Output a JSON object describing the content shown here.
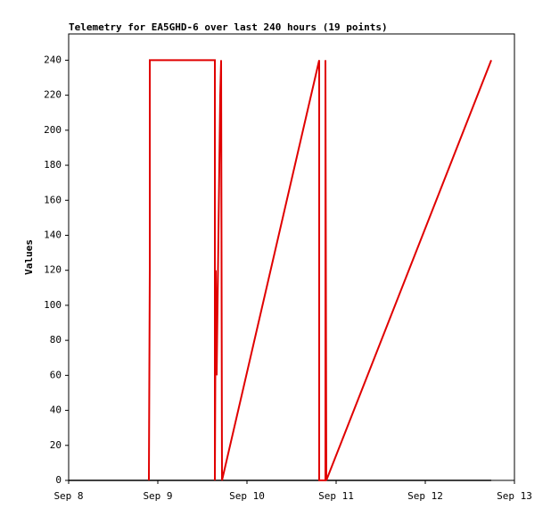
{
  "chart_data": {
    "type": "line",
    "title": "Telemetry for EA5GHD-6 over last 240 hours (19 points)",
    "y_label": "Values",
    "series": [
      {
        "color": "#000000",
        "x": [
          8.0,
          12.74
        ],
        "values": [
          0,
          0
        ]
      },
      {
        "color": "#e00000",
        "x": [
          8.9,
          8.91,
          8.91,
          9.64,
          9.64,
          9.65,
          9.66,
          9.67,
          9.68,
          9.69,
          9.7,
          9.71,
          9.72,
          10.81,
          10.81,
          10.88,
          10.88,
          10.89,
          12.74
        ],
        "values": [
          0,
          120,
          240,
          240,
          0,
          120,
          60,
          100,
          140,
          180,
          220,
          240,
          0,
          240,
          0,
          0,
          240,
          0,
          240
        ]
      }
    ],
    "xlim": [
      8,
      13
    ],
    "xticks": [
      {
        "value": 8,
        "label": "Sep 8"
      },
      {
        "value": 9,
        "label": "Sep 9"
      },
      {
        "value": 10,
        "label": "Sep 10"
      },
      {
        "value": 11,
        "label": "Sep 11"
      },
      {
        "value": 12,
        "label": "Sep 12"
      },
      {
        "value": 13,
        "label": "Sep 13"
      }
    ],
    "ylim": [
      0,
      255
    ],
    "yticks": [
      0,
      20,
      40,
      60,
      80,
      100,
      120,
      140,
      160,
      180,
      200,
      220,
      240
    ]
  }
}
